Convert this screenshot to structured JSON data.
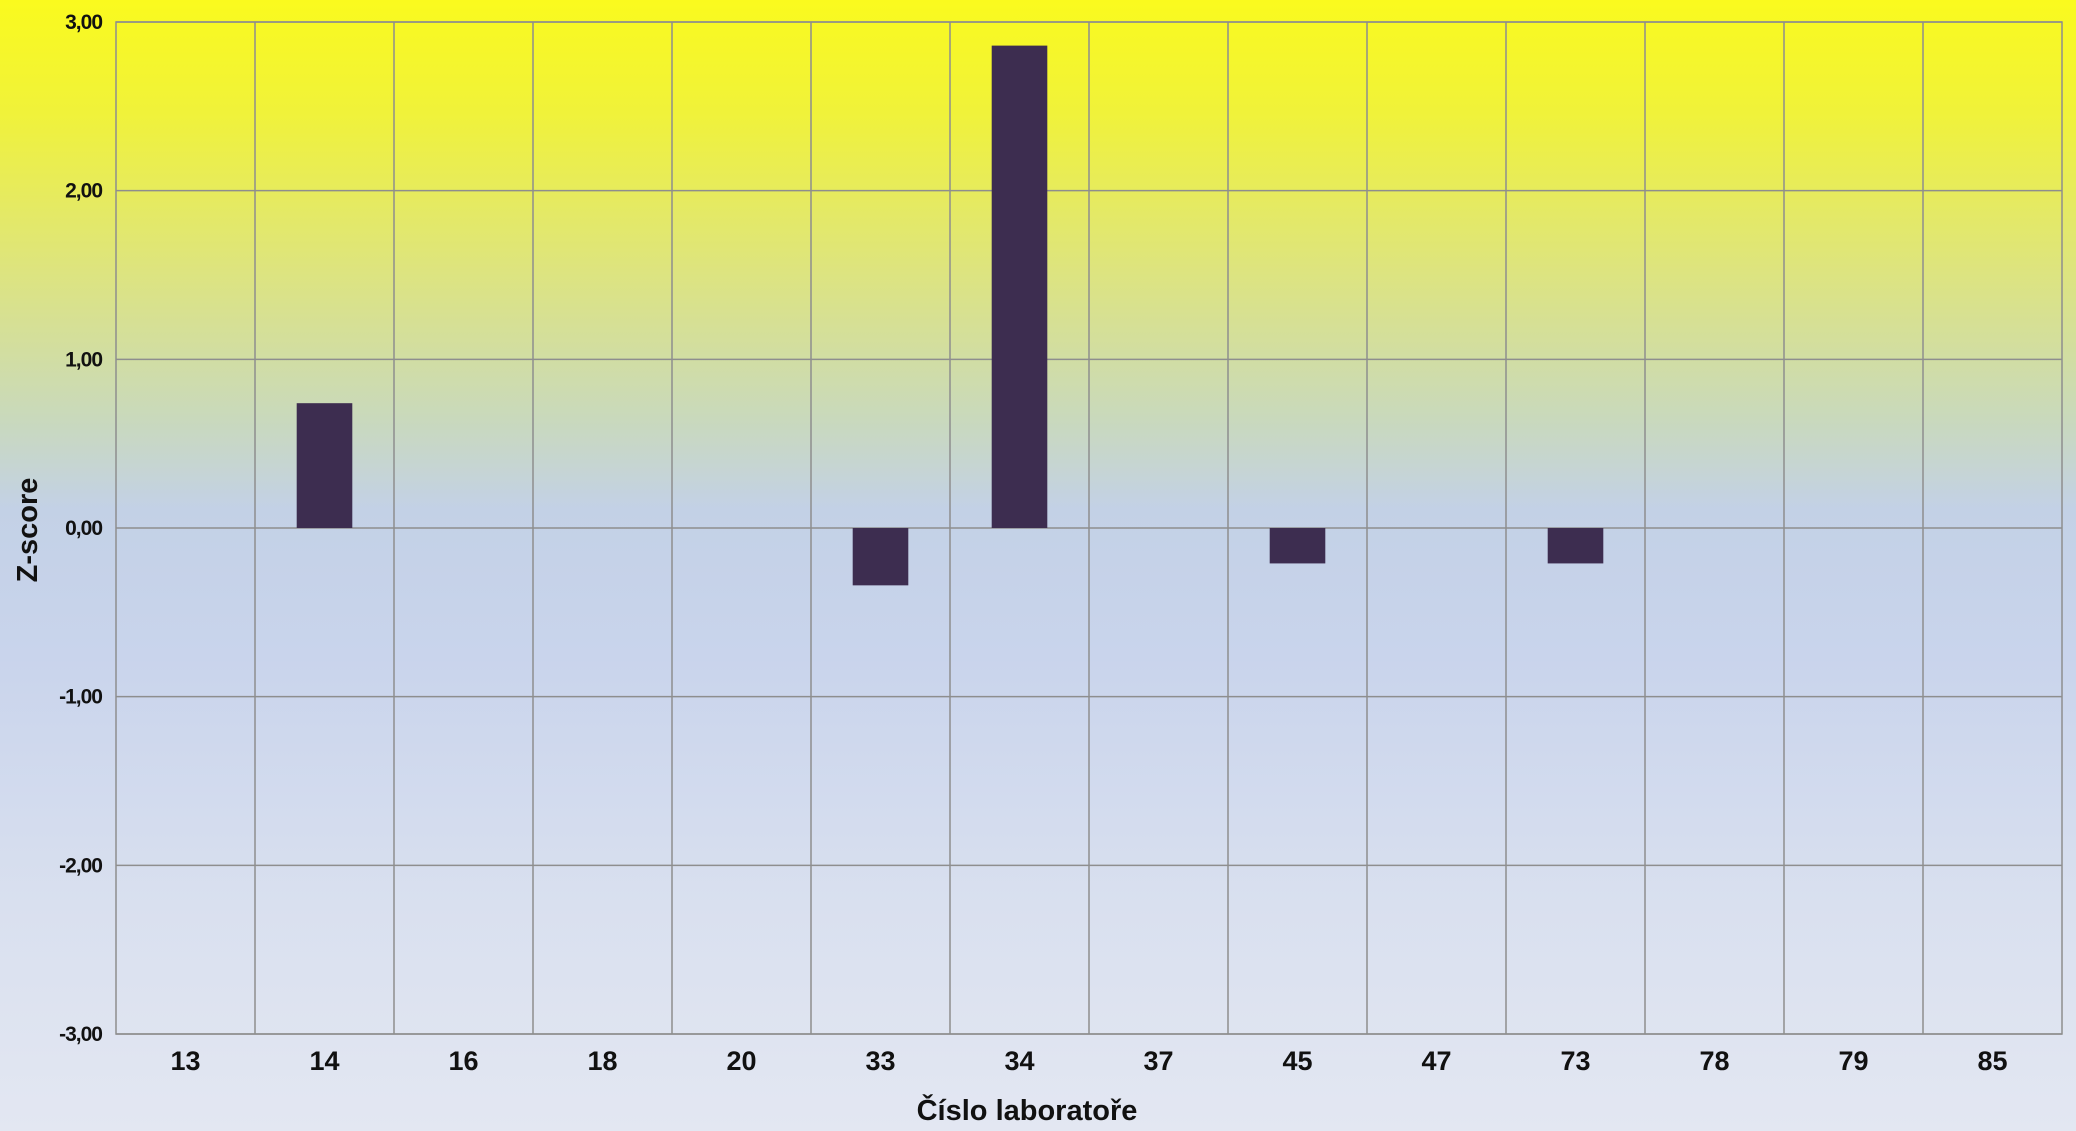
{
  "chart_data": {
    "type": "bar",
    "categories": [
      "13",
      "14",
      "16",
      "18",
      "20",
      "33",
      "34",
      "37",
      "45",
      "47",
      "73",
      "78",
      "79",
      "85"
    ],
    "series": [
      {
        "values": [
          0,
          0.74,
          0,
          0,
          0,
          -0.34,
          2.86,
          0,
          -0.21,
          0,
          -0.21,
          0,
          0,
          0
        ]
      }
    ],
    "ylim": [
      -3,
      3
    ],
    "yticks": [
      "3,00",
      "2,00",
      "1,00",
      "0,00",
      "-1,00",
      "-2,00",
      "-3,00"
    ],
    "xlabel": "Číslo laboratoře",
    "ylabel": "Z-score",
    "grid": true,
    "legend": "none",
    "colors": {
      "bar": "#3d2d50",
      "gridline": "#8e8e8e",
      "background_top": "#fafa1e",
      "background_bottom": "#e3e7f2"
    }
  }
}
